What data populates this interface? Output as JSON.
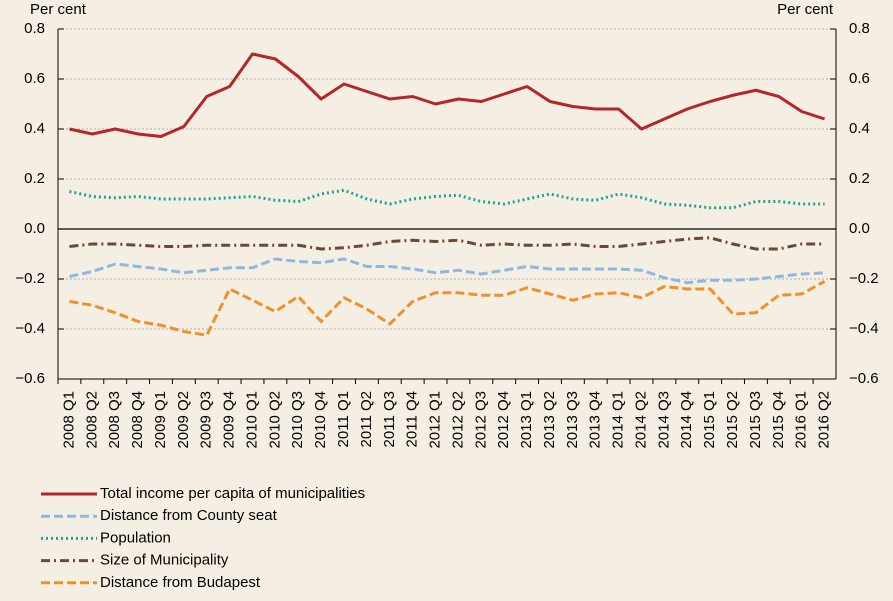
{
  "chart_data": {
    "type": "line",
    "ylabel": "Per cent",
    "y2label": "Per cent",
    "categories": [
      "2008 Q1",
      "2008 Q2",
      "2008 Q3",
      "2008 Q4",
      "2009 Q1",
      "2009 Q2",
      "2009 Q3",
      "2009 Q4",
      "2010 Q1",
      "2010 Q2",
      "2010 Q3",
      "2010 Q4",
      "2011 Q1",
      "2011 Q2",
      "2011 Q3",
      "2011 Q4",
      "2012 Q1",
      "2012 Q2",
      "2012 Q3",
      "2012 Q4",
      "2013 Q1",
      "2013 Q2",
      "2013 Q3",
      "2013 Q4",
      "2014 Q1",
      "2014 Q2",
      "2014 Q3",
      "2014 Q4",
      "2015 Q1",
      "2015 Q2",
      "2015 Q3",
      "2015 Q4",
      "2016 Q1",
      "2016 Q2"
    ],
    "ylim": [
      -0.6,
      0.8
    ],
    "yticks": [
      0.8,
      0.6,
      0.4,
      0.2,
      {
        "value": 0,
        "label": "0.0"
      },
      {
        "value": -0.2,
        "label": "−0.2"
      },
      {
        "value": -0.4,
        "label": "−0.4"
      },
      {
        "value": -0.6,
        "label": "−0.6"
      }
    ],
    "y2lim": [
      -0.6,
      0.8
    ],
    "y2ticks": [
      0.8,
      0.6,
      0.4,
      0.2,
      {
        "value": 0,
        "label": "0.0"
      },
      {
        "value": -0.2,
        "label": "−0.2"
      },
      {
        "value": -0.4,
        "label": "−0.4"
      },
      {
        "value": -0.6,
        "label": "−0.6"
      }
    ],
    "grid": true,
    "legend": "bottom",
    "series": [
      {
        "name": "Total income per capita of municipalities",
        "color": "#b5252a",
        "style": "solid",
        "values": [
          0.4,
          0.38,
          0.4,
          0.38,
          0.37,
          0.41,
          0.53,
          0.57,
          0.7,
          0.68,
          0.61,
          0.52,
          0.58,
          0.55,
          0.52,
          0.53,
          0.5,
          0.52,
          0.51,
          0.54,
          0.57,
          0.51,
          0.49,
          0.48,
          0.48,
          0.4,
          0.44,
          0.48,
          0.51,
          0.535,
          0.555,
          0.53,
          0.47,
          0.44
        ]
      },
      {
        "name": "Distance from County seat",
        "color": "#8fb8e0",
        "style": "dashed",
        "values": [
          -0.19,
          -0.17,
          -0.14,
          -0.15,
          -0.16,
          -0.175,
          -0.165,
          -0.155,
          -0.155,
          -0.12,
          -0.13,
          -0.135,
          -0.12,
          -0.15,
          -0.15,
          -0.16,
          -0.175,
          -0.165,
          -0.18,
          -0.165,
          -0.15,
          -0.16,
          -0.16,
          -0.16,
          -0.16,
          -0.165,
          -0.195,
          -0.215,
          -0.205,
          -0.205,
          -0.2,
          -0.19,
          -0.18,
          -0.175
        ]
      },
      {
        "name": "Population",
        "color": "#1aa39a",
        "style": "dotted",
        "values": [
          0.15,
          0.13,
          0.125,
          0.13,
          0.12,
          0.12,
          0.12,
          0.125,
          0.13,
          0.115,
          0.11,
          0.14,
          0.155,
          0.12,
          0.1,
          0.12,
          0.13,
          0.135,
          0.11,
          0.1,
          0.12,
          0.14,
          0.12,
          0.115,
          0.14,
          0.125,
          0.1,
          0.095,
          0.085,
          0.085,
          0.11,
          0.11,
          0.1,
          0.1
        ]
      },
      {
        "name": "Size of Municipality",
        "color": "#6b4a35",
        "style": "dashdot",
        "values": [
          -0.07,
          -0.06,
          -0.06,
          -0.065,
          -0.07,
          -0.07,
          -0.065,
          -0.065,
          -0.065,
          -0.065,
          -0.065,
          -0.08,
          -0.075,
          -0.065,
          -0.05,
          -0.045,
          -0.05,
          -0.045,
          -0.065,
          -0.06,
          -0.065,
          -0.065,
          -0.06,
          -0.07,
          -0.07,
          -0.06,
          -0.05,
          -0.04,
          -0.035,
          -0.06,
          -0.08,
          -0.08,
          -0.06,
          -0.06
        ]
      },
      {
        "name": "Distance from Budapest",
        "color": "#f0902a",
        "style": "dashed",
        "values": [
          -0.29,
          -0.305,
          -0.335,
          -0.37,
          -0.385,
          -0.41,
          -0.425,
          -0.24,
          -0.285,
          -0.33,
          -0.27,
          -0.37,
          -0.275,
          -0.32,
          -0.38,
          -0.29,
          -0.255,
          -0.255,
          -0.265,
          -0.265,
          -0.235,
          -0.26,
          -0.285,
          -0.26,
          -0.255,
          -0.275,
          -0.23,
          -0.24,
          -0.24,
          -0.34,
          -0.335,
          -0.265,
          -0.26,
          -0.21
        ]
      }
    ]
  }
}
